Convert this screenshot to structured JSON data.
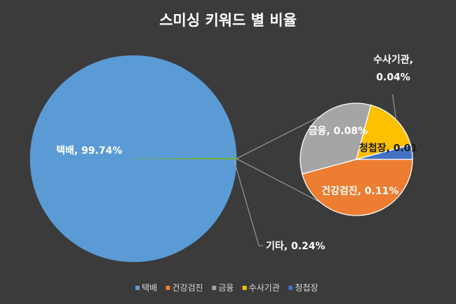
{
  "chart_data": {
    "type": "pie",
    "subtype": "pie-of-pie",
    "title": "스미싱 키워드 별 비율",
    "categories": [
      "택배",
      "건강검진",
      "금융",
      "수사기관",
      "청첩장"
    ],
    "values": [
      99.74,
      0.11,
      0.08,
      0.04,
      0.01
    ],
    "colors": [
      "#5b9bd5",
      "#ed7d31",
      "#a5a5a5",
      "#ffc000",
      "#4472c4"
    ],
    "main_pie": {
      "slices": [
        {
          "label": "택배",
          "value": 99.74,
          "color": "#5b9bd5",
          "data_label": "택배, 99.74%"
        },
        {
          "label": "기타",
          "value": 0.24,
          "color": "#70ad47",
          "data_label": "기타, 0.24%"
        }
      ]
    },
    "secondary_pie": {
      "slices": [
        {
          "label": "건강검진",
          "value": 0.11,
          "color": "#ed7d31",
          "data_label": "건강검진, 0.11%"
        },
        {
          "label": "금융",
          "value": 0.08,
          "color": "#a5a5a5",
          "data_label": "금융, 0.08%"
        },
        {
          "label": "수사기관",
          "value": 0.04,
          "color": "#ffc000",
          "data_label": "수사기관, 0.04%"
        },
        {
          "label": "청첩장",
          "value": 0.01,
          "color": "#4472c4",
          "data_label": "청첩장, 0.01"
        }
      ]
    },
    "legend": {
      "position": "bottom",
      "items": [
        {
          "label": "택배",
          "color": "#5b9bd5"
        },
        {
          "label": "건강검진",
          "color": "#ed7d31"
        },
        {
          "label": "금융",
          "color": "#a5a5a5"
        },
        {
          "label": "수사기관",
          "color": "#ffc000"
        },
        {
          "label": "청첩장",
          "color": "#4472c4"
        }
      ]
    },
    "background_color": "#3b3b3b"
  }
}
